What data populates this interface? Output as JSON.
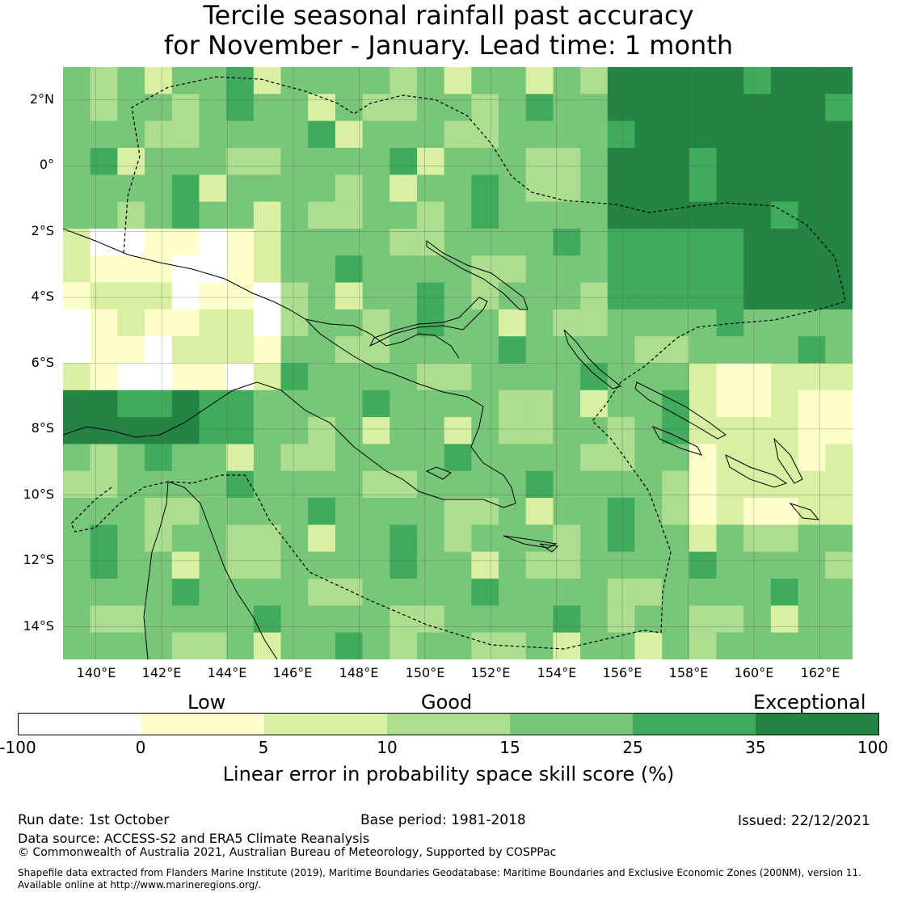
{
  "title": {
    "line1": "Tercile seasonal rainfall past accuracy",
    "line2": "for November - January. Lead time: 1 month"
  },
  "map": {
    "lon_range": [
      139,
      163
    ],
    "lat_range": [
      -15,
      3
    ],
    "lat_labels": [
      "2°N",
      "0°",
      "2°S",
      "4°S",
      "6°S",
      "8°S",
      "10°S",
      "12°S",
      "14°S"
    ],
    "lon_labels": [
      "140°E",
      "142°E",
      "144°E",
      "146°E",
      "148°E",
      "150°E",
      "152°E",
      "154°E",
      "156°E",
      "158°E",
      "160°E",
      "162°E"
    ]
  },
  "legend": {
    "categories": [
      "Low",
      "Good",
      "Exceptional"
    ],
    "ticks": [
      "-100",
      "0",
      "5",
      "10",
      "15",
      "25",
      "35",
      "100"
    ],
    "colors": [
      "#ffffff",
      "#ffffcc",
      "#d9f0a3",
      "#addd8e",
      "#78c679",
      "#41ab5d",
      "#238443"
    ],
    "title": "Linear error in probability space skill score (%)"
  },
  "footer": {
    "run_date": "Run date: 1st October",
    "base_period": "Base period: 1981-2018",
    "issued": "Issued: 22/12/2021",
    "source": "Data source: ACCESS-S2 and ERA5 Climate Reanalysis",
    "copyright": "© Commonwealth of Australia 2021, Australian Bureau of Meteorology, Supported by COSPPac",
    "shapefile1": "Shapefile data extracted from Flanders Marine Institute (2019), Maritime Boundaries Geodatabase: Maritime Boundaries and Exclusive Economic Zones (200NM), version 11.",
    "shapefile2": "Available online at http://www.marineregions.org/."
  }
}
